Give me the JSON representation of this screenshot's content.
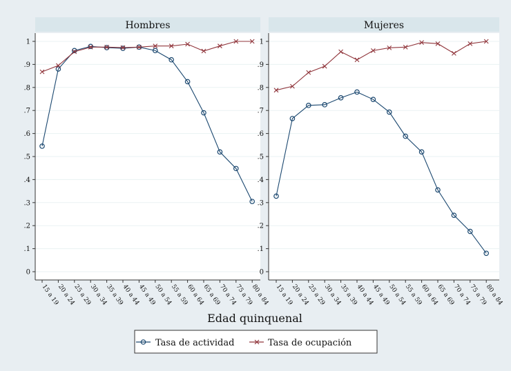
{
  "chart_data": [
    {
      "type": "line",
      "title": "Hombres",
      "categories": [
        "15 a 19",
        "20 a 24",
        "25 a 29",
        "30 a 34",
        "35 a 39",
        "40 a 44",
        "45 a 49",
        "50 a 54",
        "55 a 59",
        "60 a 64",
        "65 a 69",
        "70 a 74",
        "75 a 79",
        "80 a 84"
      ],
      "series": [
        {
          "name": "Tasa de actividad",
          "values": [
            0.545,
            0.88,
            0.96,
            0.978,
            0.973,
            0.97,
            0.975,
            0.96,
            0.92,
            0.825,
            0.69,
            0.52,
            0.448,
            0.305
          ]
        },
        {
          "name": "Tasa de ocupación",
          "values": [
            0.868,
            0.895,
            0.955,
            0.975,
            0.975,
            0.973,
            0.975,
            0.98,
            0.98,
            0.988,
            0.958,
            0.98,
            1.0,
            1.0
          ]
        }
      ],
      "ylim": [
        0,
        1
      ],
      "yticks": [
        "0",
        ".1",
        ".2",
        ".3",
        ".4",
        ".5",
        ".6",
        ".7",
        ".8",
        ".9",
        "1"
      ]
    },
    {
      "type": "line",
      "title": "Mujeres",
      "categories": [
        "15 a 19",
        "20 a 24",
        "25 a 29",
        "30 a 34",
        "35 a 39",
        "40 a 44",
        "45 a 49",
        "50 a 54",
        "55 a 59",
        "60 a 64",
        "65 a 69",
        "70 a 74",
        "75 a 79",
        "80 a 84"
      ],
      "series": [
        {
          "name": "Tasa de actividad",
          "values": [
            0.328,
            0.665,
            0.722,
            0.725,
            0.755,
            0.78,
            0.748,
            0.693,
            0.588,
            0.52,
            0.355,
            0.245,
            0.175,
            0.08
          ]
        },
        {
          "name": "Tasa de ocupación",
          "values": [
            0.788,
            0.805,
            0.865,
            0.892,
            0.955,
            0.92,
            0.96,
            0.972,
            0.975,
            0.995,
            0.99,
            0.948,
            0.99,
            1.0
          ]
        }
      ],
      "ylim": [
        0,
        1
      ],
      "yticks": [
        "0",
        ".1",
        ".2",
        ".3",
        ".4",
        ".5",
        ".6",
        ".7",
        ".8",
        ".9",
        "1"
      ]
    }
  ],
  "xlabel": "Edad quinquenal",
  "legend": [
    {
      "label": "Tasa de actividad",
      "marker": "circle",
      "color": "#1a476f"
    },
    {
      "label": "Tasa de ocupación",
      "marker": "x",
      "color": "#90353b"
    }
  ],
  "colors": {
    "actividad": "#1a476f",
    "ocupacion": "#90353b",
    "panel_bg": "#ffffff",
    "strip_bg": "#d9e6eb",
    "page_bg": "#e8eef2"
  }
}
